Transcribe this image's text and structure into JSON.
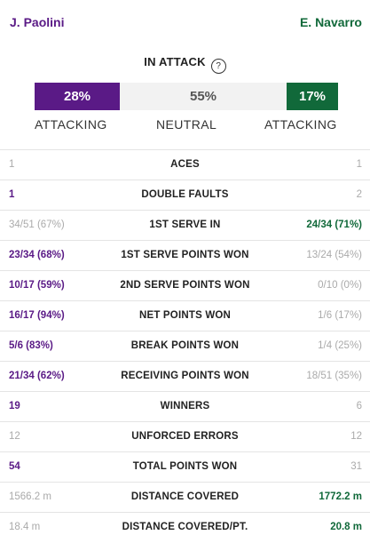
{
  "players": {
    "left": "J. Paolini",
    "right": "E. Navarro"
  },
  "attack": {
    "title": "IN ATTACK",
    "help_symbol": "?",
    "left_pct": "28%",
    "neutral_pct": "55%",
    "right_pct": "17%",
    "left_value": 28,
    "neutral_value": 55,
    "right_value": 17,
    "left_label": "ATTACKING",
    "neutral_label": "NEUTRAL",
    "right_label": "ATTACKING"
  },
  "colors": {
    "left_player": "#5a1a86",
    "right_player": "#11693a",
    "neutral": "#f2f2f2"
  },
  "stats": [
    {
      "label": "ACES",
      "left": "1",
      "right": "1",
      "leader": "none"
    },
    {
      "label": "DOUBLE FAULTS",
      "left": "1",
      "right": "2",
      "leader": "left"
    },
    {
      "label": "1ST SERVE IN",
      "left": "34/51 (67%)",
      "right": "24/34 (71%)",
      "leader": "right"
    },
    {
      "label": "1ST SERVE POINTS WON",
      "left": "23/34 (68%)",
      "right": "13/24 (54%)",
      "leader": "left"
    },
    {
      "label": "2ND SERVE POINTS WON",
      "left": "10/17 (59%)",
      "right": "0/10 (0%)",
      "leader": "left"
    },
    {
      "label": "NET POINTS WON",
      "left": "16/17 (94%)",
      "right": "1/6 (17%)",
      "leader": "left"
    },
    {
      "label": "BREAK POINTS WON",
      "left": "5/6 (83%)",
      "right": "1/4 (25%)",
      "leader": "left"
    },
    {
      "label": "RECEIVING POINTS WON",
      "left": "21/34 (62%)",
      "right": "18/51 (35%)",
      "leader": "left"
    },
    {
      "label": "WINNERS",
      "left": "19",
      "right": "6",
      "leader": "left"
    },
    {
      "label": "UNFORCED ERRORS",
      "left": "12",
      "right": "12",
      "leader": "none"
    },
    {
      "label": "TOTAL POINTS WON",
      "left": "54",
      "right": "31",
      "leader": "left"
    },
    {
      "label": "DISTANCE COVERED",
      "left": "1566.2 m",
      "right": "1772.2 m",
      "leader": "right"
    },
    {
      "label": "DISTANCE COVERED/PT.",
      "left": "18.4 m",
      "right": "20.8 m",
      "leader": "right"
    }
  ]
}
